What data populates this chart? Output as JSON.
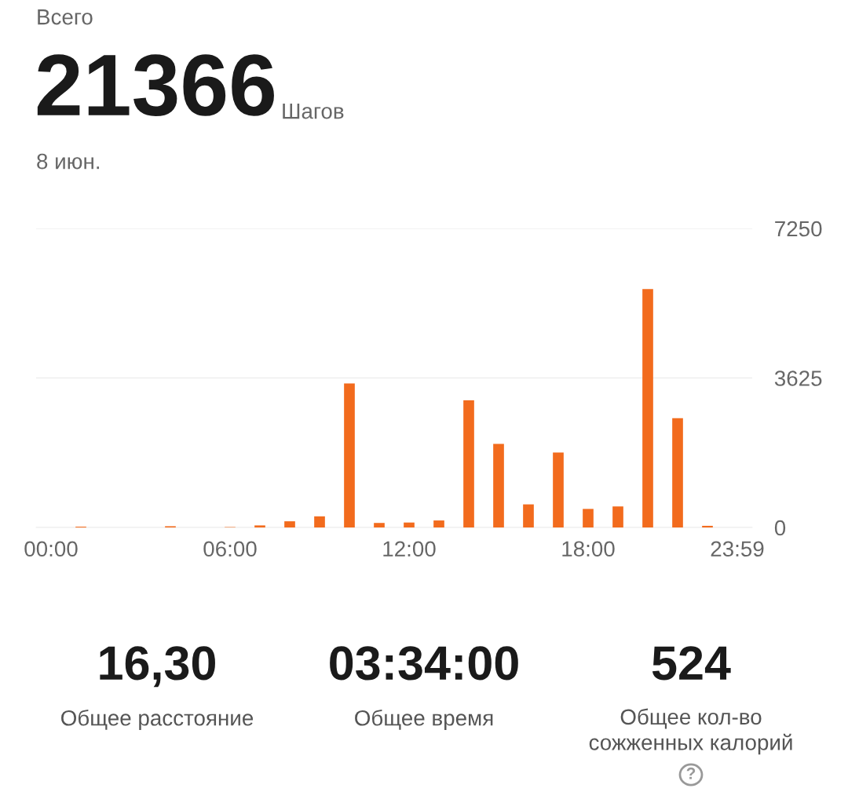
{
  "chart_data": {
    "type": "bar",
    "title": "Всего",
    "categories": [
      "00:00",
      null,
      null,
      null,
      null,
      null,
      "06:00",
      null,
      null,
      null,
      null,
      null,
      "12:00",
      null,
      null,
      null,
      null,
      null,
      "18:00",
      null,
      null,
      null,
      null,
      "23:59"
    ],
    "values": [
      0,
      20,
      0,
      0,
      30,
      0,
      10,
      50,
      150,
      270,
      3490,
      110,
      120,
      170,
      3085,
      2025,
      560,
      1815,
      450,
      510,
      5780,
      2650,
      40,
      0
    ],
    "color": "#f26b1d",
    "ylim": [
      0,
      7250
    ],
    "yticks": [
      0,
      3625,
      7250
    ],
    "grid": "y",
    "annotations": [
      "21366",
      "Шагов",
      "8 июн.",
      "16,30",
      "Общее расстояние",
      "03:34:00",
      "Общее время",
      "524",
      "Общее кол-во\nсожженных калорий",
      "?"
    ]
  }
}
